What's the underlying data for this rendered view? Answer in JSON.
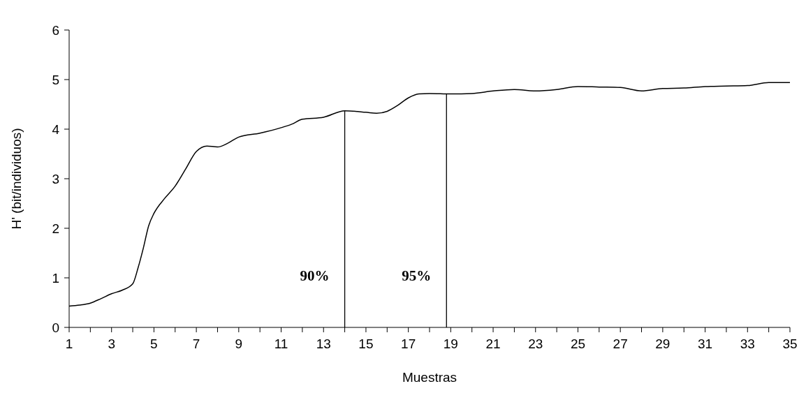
{
  "chart_data": {
    "type": "line",
    "xlabel": "Muestras",
    "ylabel": "H' (bit/individuos)",
    "x": [
      1,
      1.5,
      2,
      2.5,
      3,
      3.5,
      4,
      4.25,
      4.5,
      4.75,
      5,
      5.5,
      6,
      6.5,
      7,
      7.5,
      8,
      8.5,
      9,
      10,
      11,
      11.5,
      12,
      13,
      14,
      15,
      15.5,
      16,
      16.5,
      17,
      17.5,
      18,
      19,
      20,
      21,
      22,
      23,
      24,
      25,
      26,
      27,
      28,
      29,
      30,
      31,
      32,
      33,
      34,
      35
    ],
    "series": [
      {
        "color": "#000000",
        "values": [
          0.43,
          0.45,
          0.49,
          0.58,
          0.68,
          0.75,
          0.88,
          1.2,
          1.6,
          2.05,
          2.3,
          2.6,
          2.85,
          3.2,
          3.55,
          3.66,
          3.64,
          3.72,
          3.84,
          3.92,
          4.03,
          4.1,
          4.2,
          4.24,
          4.37,
          4.34,
          4.32,
          4.36,
          4.48,
          4.63,
          4.71,
          4.72,
          4.71,
          4.72,
          4.77,
          4.8,
          4.77,
          4.8,
          4.86,
          4.85,
          4.84,
          4.77,
          4.82,
          4.83,
          4.86,
          4.87,
          4.88,
          4.94,
          4.94
        ]
      }
    ],
    "xlim": [
      1,
      35
    ],
    "xticks": [
      1,
      {
        "value": 2,
        "label": null
      },
      3,
      {
        "value": 4,
        "label": null
      },
      5,
      {
        "value": 6,
        "label": null
      },
      7,
      {
        "value": 8,
        "label": null
      },
      9,
      {
        "value": 10,
        "label": null
      },
      11,
      {
        "value": 12,
        "label": null
      },
      13,
      {
        "value": 14,
        "label": null
      },
      15,
      {
        "value": 16,
        "label": null
      },
      17,
      {
        "value": 18,
        "label": null
      },
      19,
      {
        "value": 20,
        "label": null
      },
      21,
      {
        "value": 22,
        "label": null
      },
      23,
      {
        "value": 24,
        "label": null
      },
      25,
      {
        "value": 26,
        "label": null
      },
      27,
      {
        "value": 28,
        "label": null
      },
      29,
      {
        "value": 30,
        "label": null
      },
      31,
      {
        "value": 32,
        "label": null
      },
      33,
      {
        "value": 34,
        "label": null
      },
      35
    ],
    "ylim": [
      0,
      6
    ],
    "yticks": [
      0,
      1,
      2,
      3,
      4,
      5,
      6
    ],
    "ref_lines": [
      {
        "axis": "x",
        "value": 14,
        "color": "#000000"
      },
      {
        "axis": "x",
        "value": 18.8,
        "color": "#000000"
      }
    ],
    "annotations": [
      {
        "text": "90%",
        "x": 14,
        "y": 0.95
      },
      {
        "text": "95%",
        "x": 18.8,
        "y": 0.95
      }
    ]
  }
}
